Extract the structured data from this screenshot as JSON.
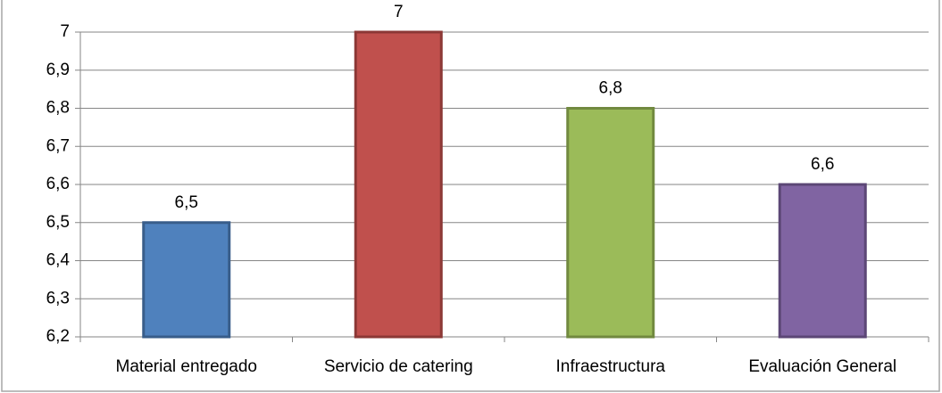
{
  "chart_data": {
    "type": "bar",
    "categories": [
      "Material entregado",
      "Servicio de catering",
      "Infraestructura",
      "Evaluación General"
    ],
    "values": [
      6.5,
      7,
      6.8,
      6.6
    ],
    "value_labels": [
      "6,5",
      "7",
      "6,8",
      "6,6"
    ],
    "colors": [
      "#4f81bd",
      "#c0504d",
      "#9bbb59",
      "#8064a2"
    ],
    "edge_colors": [
      "#385d8a",
      "#8c3836",
      "#71893f",
      "#5c4776"
    ],
    "ylim": [
      6.2,
      7
    ],
    "yticks": [
      {
        "value": 6.2,
        "label": "6,2"
      },
      {
        "value": 6.3,
        "label": "6,3"
      },
      {
        "value": 6.4,
        "label": "6,4"
      },
      {
        "value": 6.5,
        "label": "6,5"
      },
      {
        "value": 6.6,
        "label": "6,6"
      },
      {
        "value": 6.7,
        "label": "6,7"
      },
      {
        "value": 6.8,
        "label": "6,8"
      },
      {
        "value": 6.9,
        "label": "6,9"
      },
      {
        "value": 7,
        "label": "7"
      }
    ],
    "grid": true
  }
}
